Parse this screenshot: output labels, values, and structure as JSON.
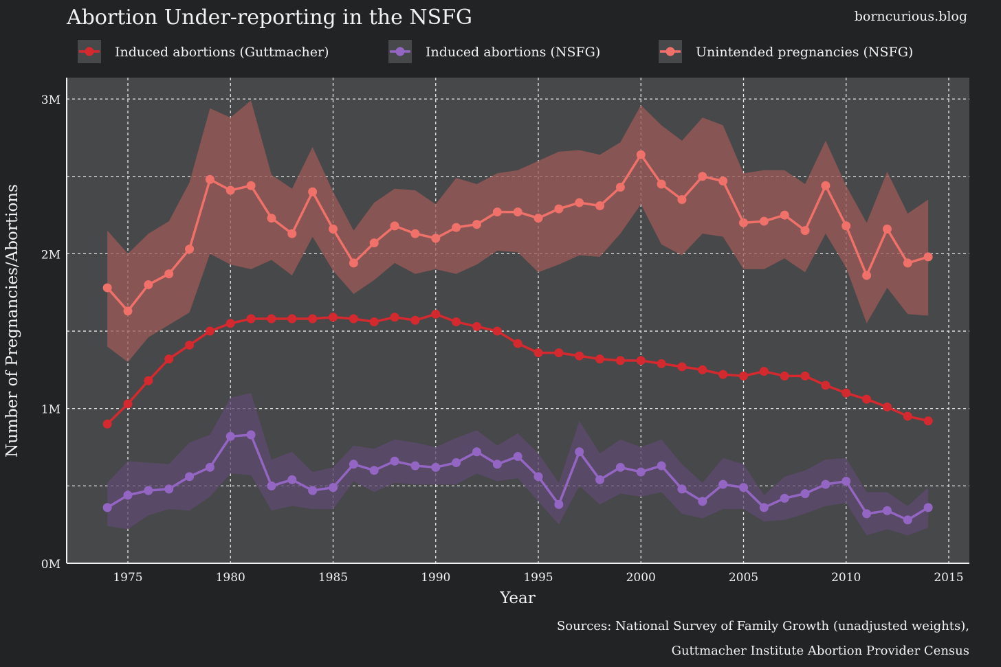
{
  "header": {
    "title": "Abortion Under-reporting in the NSFG",
    "site": "borncurious.blog"
  },
  "footer": {
    "line1": "Sources: National Survey of Family Growth (unadjusted weights),",
    "line2": "Guttmacher Institute Abortion Provider Census"
  },
  "chart_data": {
    "type": "line",
    "title": "Abortion Under-reporting in the NSFG",
    "xlabel": "Year",
    "ylabel": "Number of Pregnancies/Abortions",
    "xlim": [
      1972,
      2016
    ],
    "ylim": [
      0,
      3.13
    ],
    "xticks": [
      1975,
      1980,
      1985,
      1990,
      1995,
      2000,
      2005,
      2010,
      2015
    ],
    "yticks": [
      {
        "v": 0,
        "label": "0M"
      },
      {
        "v": 1,
        "label": "1M"
      },
      {
        "v": 2,
        "label": "2M"
      },
      {
        "v": 3,
        "label": "3M"
      }
    ],
    "grid": true,
    "legend_placement": "top",
    "x": [
      1974,
      1975,
      1976,
      1977,
      1978,
      1979,
      1980,
      1981,
      1982,
      1983,
      1984,
      1985,
      1986,
      1987,
      1988,
      1989,
      1990,
      1991,
      1992,
      1993,
      1994,
      1995,
      1996,
      1997,
      1998,
      1999,
      2000,
      2001,
      2002,
      2003,
      2004,
      2005,
      2006,
      2007,
      2008,
      2009,
      2010,
      2011,
      2012,
      2013,
      2014
    ],
    "series": [
      {
        "name": "Unintended pregnancies (NSFG)",
        "color": "#f0706a",
        "band_color": "#9c5a57",
        "values": [
          1.78,
          1.63,
          1.8,
          1.87,
          2.03,
          2.48,
          2.41,
          2.44,
          2.23,
          2.13,
          2.4,
          2.16,
          1.94,
          2.07,
          2.18,
          2.13,
          2.1,
          2.17,
          2.19,
          2.27,
          2.27,
          2.23,
          2.29,
          2.33,
          2.31,
          2.43,
          2.64,
          2.45,
          2.35,
          2.5,
          2.47,
          2.2,
          2.21,
          2.25,
          2.15,
          2.44,
          2.18,
          1.86,
          2.16,
          1.94,
          1.98
        ],
        "upper": [
          2.15,
          2.0,
          2.13,
          2.21,
          2.46,
          2.94,
          2.88,
          2.99,
          2.51,
          2.42,
          2.69,
          2.4,
          2.15,
          2.33,
          2.42,
          2.41,
          2.32,
          2.49,
          2.45,
          2.52,
          2.54,
          2.6,
          2.66,
          2.67,
          2.64,
          2.72,
          2.96,
          2.83,
          2.73,
          2.88,
          2.83,
          2.52,
          2.54,
          2.54,
          2.45,
          2.73,
          2.44,
          2.2,
          2.53,
          2.26,
          2.35
        ],
        "lower": [
          1.4,
          1.3,
          1.46,
          1.54,
          1.62,
          2.0,
          1.93,
          1.9,
          1.96,
          1.86,
          2.11,
          1.89,
          1.74,
          1.83,
          1.94,
          1.87,
          1.9,
          1.87,
          1.93,
          2.02,
          2.01,
          1.88,
          1.93,
          1.99,
          1.98,
          2.13,
          2.32,
          2.06,
          1.99,
          2.13,
          2.11,
          1.9,
          1.9,
          1.97,
          1.88,
          2.13,
          1.91,
          1.55,
          1.78,
          1.61,
          1.6
        ]
      },
      {
        "name": "Induced abortions (Guttmacher)",
        "color": "#d42a2f",
        "values": [
          0.9,
          1.03,
          1.18,
          1.32,
          1.41,
          1.5,
          1.55,
          1.58,
          1.58,
          1.58,
          1.58,
          1.59,
          1.58,
          1.56,
          1.59,
          1.57,
          1.61,
          1.56,
          1.53,
          1.5,
          1.42,
          1.36,
          1.36,
          1.34,
          1.32,
          1.31,
          1.31,
          1.29,
          1.27,
          1.25,
          1.22,
          1.21,
          1.24,
          1.21,
          1.21,
          1.15,
          1.1,
          1.06,
          1.01,
          0.95,
          0.92
        ]
      },
      {
        "name": "Induced abortions (NSFG)",
        "color": "#9466c4",
        "band_color": "#5d4a70",
        "values": [
          0.36,
          0.44,
          0.47,
          0.48,
          0.56,
          0.62,
          0.82,
          0.83,
          0.5,
          0.54,
          0.47,
          0.49,
          0.64,
          0.6,
          0.66,
          0.63,
          0.62,
          0.65,
          0.72,
          0.64,
          0.69,
          0.56,
          0.38,
          0.72,
          0.54,
          0.62,
          0.59,
          0.63,
          0.48,
          0.4,
          0.51,
          0.49,
          0.36,
          0.42,
          0.45,
          0.51,
          0.53,
          0.32,
          0.34,
          0.28,
          0.36
        ],
        "upper": [
          0.52,
          0.66,
          0.65,
          0.64,
          0.78,
          0.83,
          1.07,
          1.1,
          0.67,
          0.72,
          0.59,
          0.62,
          0.76,
          0.74,
          0.8,
          0.78,
          0.75,
          0.81,
          0.86,
          0.76,
          0.84,
          0.71,
          0.52,
          0.92,
          0.71,
          0.8,
          0.75,
          0.8,
          0.64,
          0.52,
          0.68,
          0.64,
          0.44,
          0.56,
          0.6,
          0.67,
          0.68,
          0.46,
          0.46,
          0.37,
          0.49
        ],
        "lower": [
          0.24,
          0.22,
          0.31,
          0.35,
          0.34,
          0.43,
          0.58,
          0.57,
          0.34,
          0.37,
          0.35,
          0.35,
          0.53,
          0.46,
          0.52,
          0.51,
          0.51,
          0.51,
          0.58,
          0.53,
          0.55,
          0.4,
          0.25,
          0.5,
          0.38,
          0.45,
          0.43,
          0.46,
          0.32,
          0.29,
          0.35,
          0.35,
          0.27,
          0.28,
          0.32,
          0.37,
          0.39,
          0.18,
          0.22,
          0.18,
          0.23
        ]
      }
    ],
    "legend": [
      {
        "label": "Induced abortions (Guttmacher)",
        "color": "#d42a2f"
      },
      {
        "label": "Induced abortions (NSFG)",
        "color": "#9466c4"
      },
      {
        "label": "Unintended pregnancies (NSFG)",
        "color": "#f0706a"
      }
    ]
  }
}
